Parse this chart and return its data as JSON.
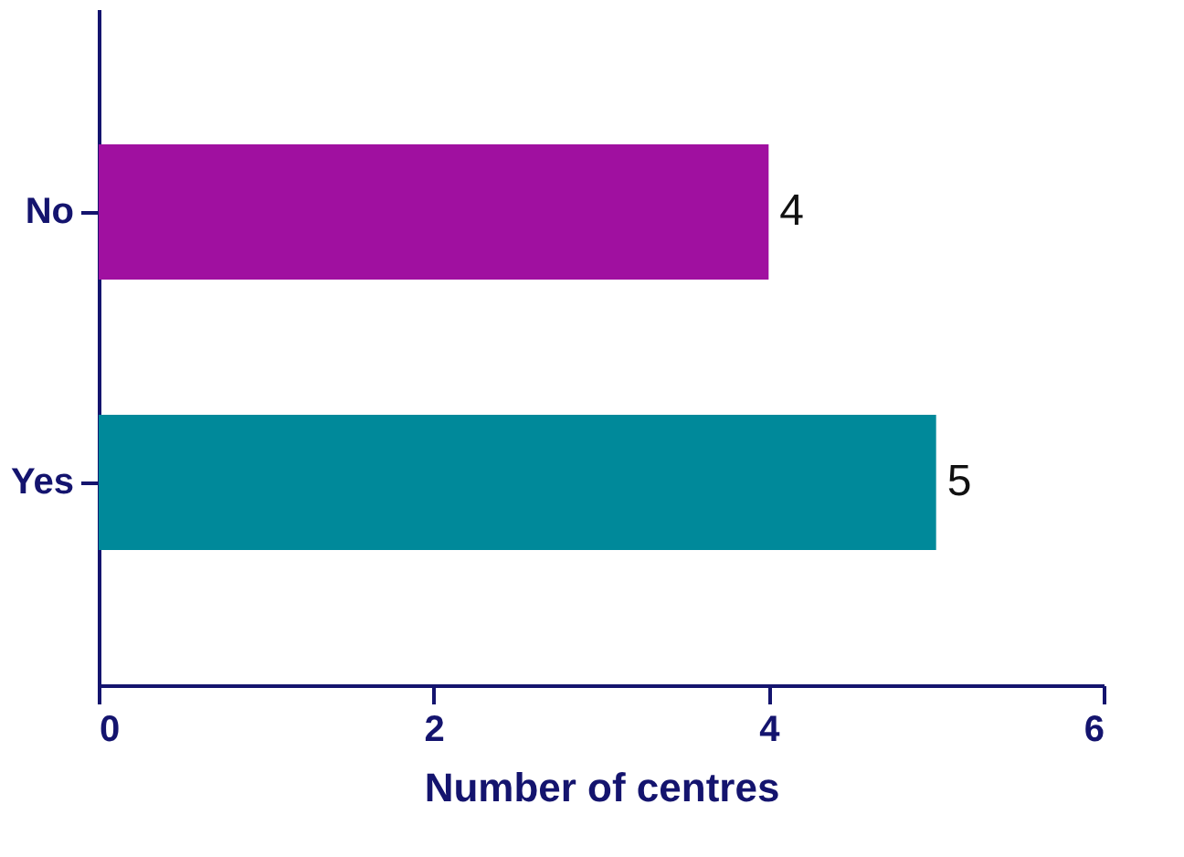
{
  "chart_data": {
    "type": "bar",
    "orientation": "horizontal",
    "categories": [
      "No",
      "Yes"
    ],
    "values": [
      4,
      5
    ],
    "colors": [
      "#a010a0",
      "#00899a"
    ],
    "xlabel": "Number of centres",
    "xlim": [
      0,
      6
    ],
    "xticks": [
      0,
      2,
      4,
      6
    ],
    "data_labels": true,
    "grid": false,
    "legend": false
  }
}
